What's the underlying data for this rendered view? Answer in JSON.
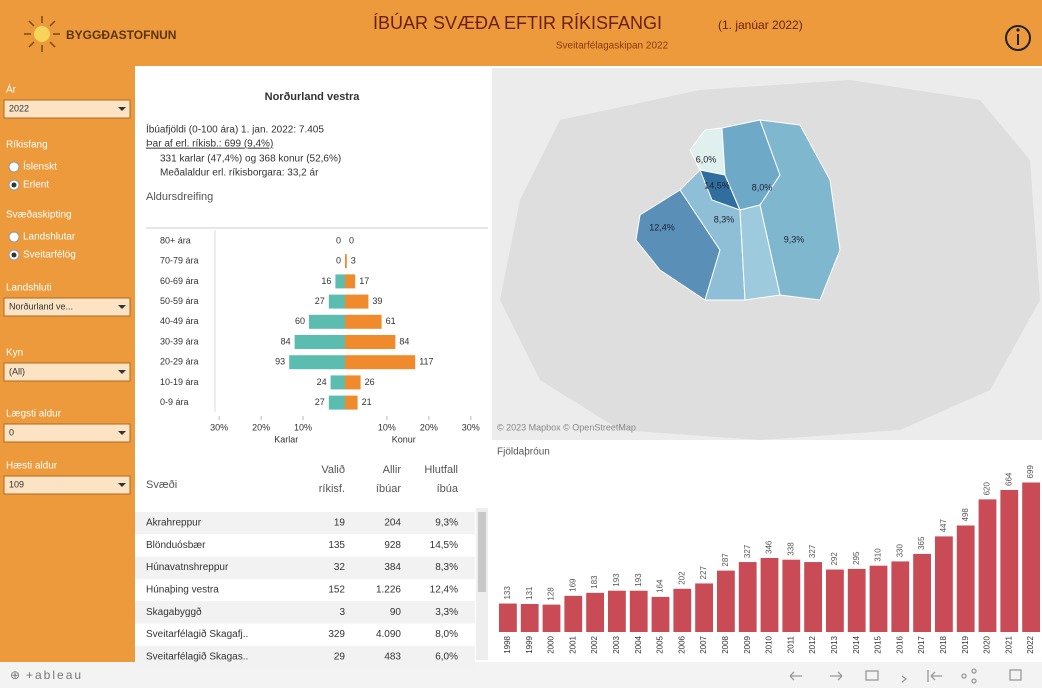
{
  "header": {
    "logo": "BYGGÐASTOFNUN",
    "title": "ÍBÚAR SVÆÐA EFTIR RÍKISFANGI",
    "date": "(1. janúar 2022)",
    "subtitle": "Sveitarfélagaskipan 2022"
  },
  "filters": [
    {
      "kind": "dropdown",
      "label": "Ár",
      "value": "2022"
    },
    {
      "kind": "radio",
      "label": "Ríkisfang",
      "options": [
        "Íslenskt",
        "Erlent"
      ],
      "selected": 1
    },
    {
      "kind": "radio",
      "label": "Svæðaskipting",
      "options": [
        "Landshlutar",
        "Sveitarfélög"
      ],
      "selected": 1
    },
    {
      "kind": "dropdown",
      "label": "Landshluti",
      "value": "Norðurland ve..."
    },
    {
      "kind": "dropdown",
      "label": "Kyn",
      "value": "(All)"
    },
    {
      "kind": "dropdown",
      "label": "Lægsti aldur",
      "value": "0"
    },
    {
      "kind": "dropdown",
      "label": "Hæsti aldur",
      "value": "109"
    }
  ],
  "summary": {
    "region": "Norðurland vestra",
    "lines": [
      "Íbúafjöldi (0-100 ára) 1. jan. 2022: 7.405",
      "Þar af erl. ríkisb.: 699 (9,4%)",
      "331 karlar (47,4%) og 368 konur (52,6%)",
      "Meðalaldur erl. ríkisborgara: 33,2 ár"
    ],
    "section": "Aldursdreifing"
  },
  "map": {
    "labels": [
      "6,0%",
      "14,5%",
      "8,0%",
      "12,4%",
      "8,3%",
      "9,3%"
    ],
    "attribution": "© 2023 Mapbox © OpenStreetMap"
  },
  "table": {
    "columns": [
      "Svæði",
      "Valið ríkisf.",
      "Allir íbúar",
      "Hlutfall íbúa"
    ],
    "rows": [
      [
        "Akrahreppur",
        "19",
        "204",
        "9,3%"
      ],
      [
        "Blönduósbær",
        "135",
        "928",
        "14,5%"
      ],
      [
        "Húnavatnshreppur",
        "32",
        "384",
        "8,3%"
      ],
      [
        "Húnaþing vestra",
        "152",
        "1.226",
        "12,4%"
      ],
      [
        "Skagabyggð",
        "3",
        "90",
        "3,3%"
      ],
      [
        "Sveitarfélagið Skagafj..",
        "329",
        "4.090",
        "8,0%"
      ],
      [
        "Sveitarfélagið Skagas..",
        "29",
        "483",
        "6,0%"
      ]
    ]
  },
  "chart_data": [
    {
      "type": "pyramid",
      "categories": [
        "80+ ára",
        "70-79 ára",
        "60-69 ára",
        "50-59 ára",
        "40-49 ára",
        "30-39 ára",
        "20-29 ára",
        "10-19 ára",
        "0-9 ára"
      ],
      "series": [
        {
          "name": "Karlar",
          "color": "#5bbcb0",
          "values": [
            0,
            0,
            16,
            27,
            60,
            84,
            93,
            24,
            27
          ]
        },
        {
          "name": "Konur",
          "color": "#ef8b2c",
          "values": [
            0,
            3,
            17,
            39,
            61,
            84,
            117,
            26,
            21
          ]
        }
      ],
      "xlim": [
        0,
        230
      ],
      "xticks": [
        {
          "value": 69.9,
          "label": "10%"
        },
        {
          "value": 139.8,
          "label": "20%"
        },
        {
          "value": 209.7,
          "label": "30%"
        }
      ]
    },
    {
      "type": "bar",
      "title": "Fjöldaþróun",
      "color": "#c94b55",
      "categories": [
        "1998",
        "1999",
        "2000",
        "2001",
        "2002",
        "2003",
        "2004",
        "2005",
        "2006",
        "2007",
        "2008",
        "2009",
        "2010",
        "2011",
        "2012",
        "2013",
        "2014",
        "2015",
        "2016",
        "2017",
        "2018",
        "2019",
        "2020",
        "2021",
        "2022"
      ],
      "values": [
        133,
        131,
        128,
        169,
        183,
        193,
        193,
        164,
        202,
        227,
        287,
        327,
        346,
        338,
        327,
        292,
        295,
        310,
        330,
        365,
        447,
        498,
        620,
        664,
        699
      ],
      "ylim": [
        0,
        720
      ]
    }
  ],
  "footer": {
    "brand": "+ableau"
  }
}
